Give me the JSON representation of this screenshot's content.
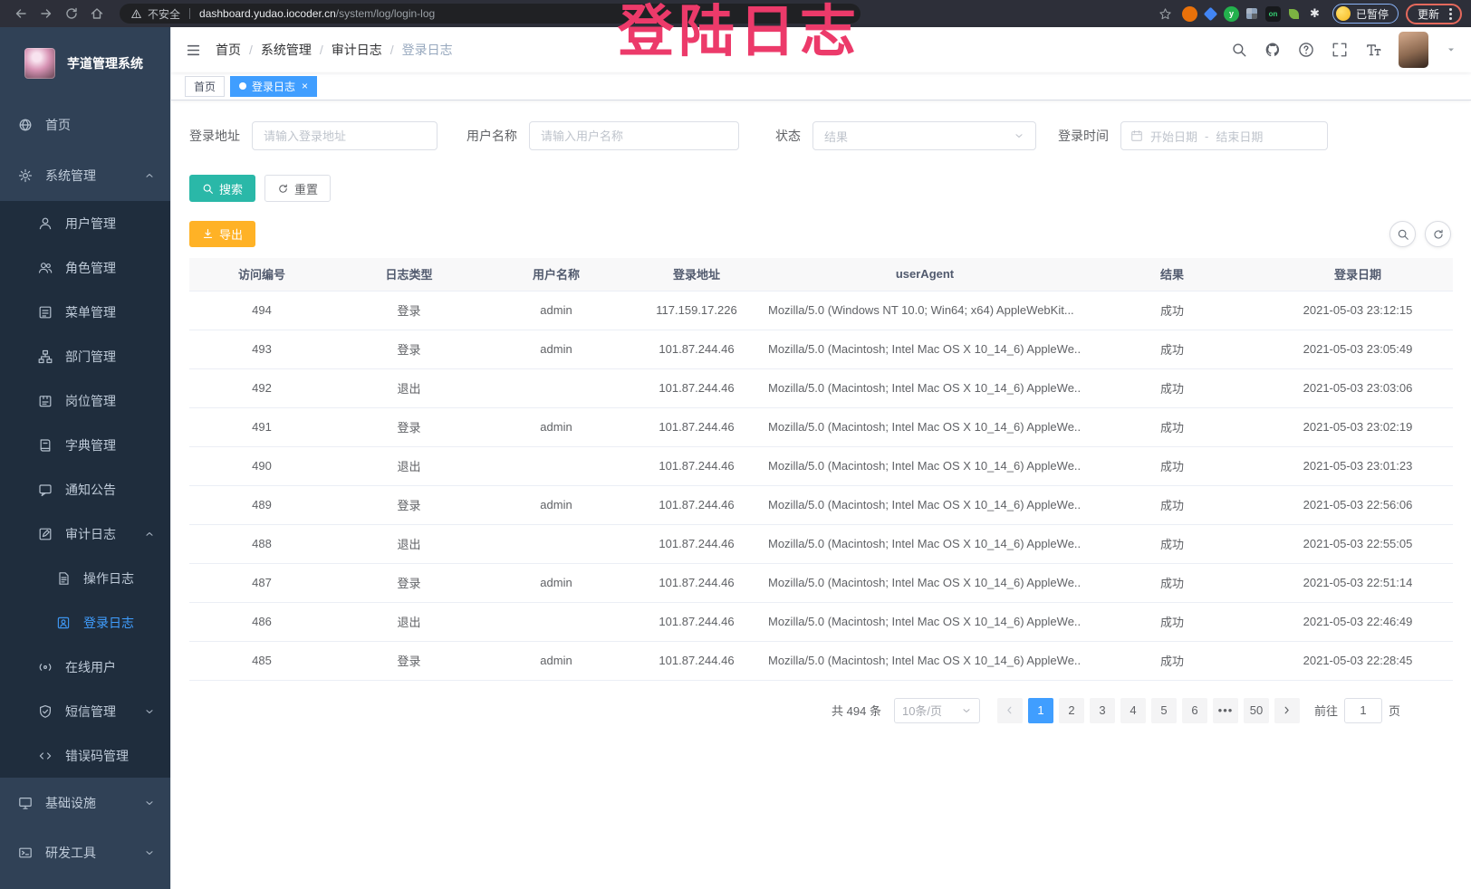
{
  "colors": {
    "accent_blue": "#409eff",
    "search_button_teal": "#2ab8a8",
    "export_button_orange": "#ffb226",
    "annotation_pink": "#ec3a6a",
    "sidebar_bg": "#304156",
    "submenu_bg": "#1f2d3d"
  },
  "browser": {
    "security_label": "不安全",
    "url_domain": "dashboard.yudao.iocoder.cn",
    "url_path": "/system/log/login-log",
    "paused_badge_label": "已暂停",
    "update_button_label": "更新",
    "extensions": [
      {
        "name": "extension-orange-circle",
        "shape": "circle",
        "color": "#e8710a"
      },
      {
        "name": "extension-blue-kite",
        "shape": "kite",
        "color": "#4285f4"
      },
      {
        "name": "extension-green-circle",
        "shape": "circle",
        "color": "#23b14d",
        "label": "y",
        "label_color": "#ffffff"
      },
      {
        "name": "extension-grid",
        "shape": "grid",
        "color": "#8fa3bb"
      },
      {
        "name": "extension-on-badge",
        "shape": "square",
        "color": "#17191c",
        "label": "on",
        "label_color": "#35d073"
      },
      {
        "name": "extension-leaf",
        "shape": "leaf",
        "color": "#7cb342"
      },
      {
        "name": "extension-puzzle",
        "shape": "puzzle",
        "color": "#e8eaed"
      }
    ]
  },
  "overlay_annotation": {
    "text": "登陆日志"
  },
  "sidebar": {
    "logo_title": "芋道管理系统",
    "menu_top": [
      {
        "label": "首页",
        "icon": "dashboard-icon",
        "level": 1
      },
      {
        "label": "系统管理",
        "icon": "gear-icon",
        "level": 1,
        "arrow": "up"
      }
    ],
    "menu_sub": [
      {
        "label": "用户管理",
        "icon": "user-icon",
        "level": 2
      },
      {
        "label": "角色管理",
        "icon": "users-icon",
        "level": 2
      },
      {
        "label": "菜单管理",
        "icon": "menu-tree-icon",
        "level": 2
      },
      {
        "label": "部门管理",
        "icon": "org-tree-icon",
        "level": 2
      },
      {
        "label": "岗位管理",
        "icon": "badge-icon",
        "level": 2
      },
      {
        "label": "字典管理",
        "icon": "dictionary-icon",
        "level": 2
      },
      {
        "label": "通知公告",
        "icon": "announcement-icon",
        "level": 2
      },
      {
        "label": "审计日志",
        "icon": "audit-log-icon",
        "level": 2,
        "arrow": "up"
      },
      {
        "label": "操作日志",
        "icon": "operation-log-icon",
        "level": 3
      },
      {
        "label": "登录日志",
        "icon": "login-log-icon",
        "level": 3,
        "active": true
      },
      {
        "label": "在线用户",
        "icon": "online-users-icon",
        "level": 2
      },
      {
        "label": "短信管理",
        "icon": "sms-icon",
        "level": 2,
        "arrow": "down"
      },
      {
        "label": "错误码管理",
        "icon": "error-code-icon",
        "level": 2
      }
    ],
    "menu_tail": [
      {
        "label": "基础设施",
        "icon": "infrastructure-icon",
        "level": 1,
        "arrow": "down"
      },
      {
        "label": "研发工具",
        "icon": "dev-tools-icon",
        "level": 1,
        "arrow": "down"
      }
    ]
  },
  "navbar": {
    "breadcrumbs": [
      "首页",
      "系统管理",
      "审计日志",
      "登录日志"
    ],
    "right_icons": [
      "search-icon",
      "github-icon",
      "help-icon",
      "fullscreen-icon",
      "font-size-icon"
    ]
  },
  "tags": [
    {
      "label": "首页",
      "active": false,
      "closable": false
    },
    {
      "label": "登录日志",
      "active": true,
      "closable": true
    }
  ],
  "filters": {
    "login_address": {
      "label": "登录地址",
      "placeholder": "请输入登录地址"
    },
    "username": {
      "label": "用户名称",
      "placeholder": "请输入用户名称"
    },
    "status": {
      "label": "状态",
      "placeholder": "结果"
    },
    "login_time": {
      "label": "登录时间",
      "start_placeholder": "开始日期",
      "separator": "-",
      "end_placeholder": "结束日期"
    },
    "search_label": "搜索",
    "reset_label": "重置"
  },
  "toolbar": {
    "export_label": "导出"
  },
  "table": {
    "headers": [
      "访问编号",
      "日志类型",
      "用户名称",
      "登录地址",
      "userAgent",
      "结果",
      "登录日期"
    ],
    "rows": [
      [
        "494",
        "登录",
        "admin",
        "117.159.17.226",
        "Mozilla/5.0 (Windows NT 10.0; Win64; x64) AppleWebKit...",
        "成功",
        "2021-05-03 23:12:15"
      ],
      [
        "493",
        "登录",
        "admin",
        "101.87.244.46",
        "Mozilla/5.0 (Macintosh; Intel Mac OS X 10_14_6) AppleWe...",
        "成功",
        "2021-05-03 23:05:49"
      ],
      [
        "492",
        "退出",
        "",
        "101.87.244.46",
        "Mozilla/5.0 (Macintosh; Intel Mac OS X 10_14_6) AppleWe...",
        "成功",
        "2021-05-03 23:03:06"
      ],
      [
        "491",
        "登录",
        "admin",
        "101.87.244.46",
        "Mozilla/5.0 (Macintosh; Intel Mac OS X 10_14_6) AppleWe...",
        "成功",
        "2021-05-03 23:02:19"
      ],
      [
        "490",
        "退出",
        "",
        "101.87.244.46",
        "Mozilla/5.0 (Macintosh; Intel Mac OS X 10_14_6) AppleWe...",
        "成功",
        "2021-05-03 23:01:23"
      ],
      [
        "489",
        "登录",
        "admin",
        "101.87.244.46",
        "Mozilla/5.0 (Macintosh; Intel Mac OS X 10_14_6) AppleWe...",
        "成功",
        "2021-05-03 22:56:06"
      ],
      [
        "488",
        "退出",
        "",
        "101.87.244.46",
        "Mozilla/5.0 (Macintosh; Intel Mac OS X 10_14_6) AppleWe...",
        "成功",
        "2021-05-03 22:55:05"
      ],
      [
        "487",
        "登录",
        "admin",
        "101.87.244.46",
        "Mozilla/5.0 (Macintosh; Intel Mac OS X 10_14_6) AppleWe...",
        "成功",
        "2021-05-03 22:51:14"
      ],
      [
        "486",
        "退出",
        "",
        "101.87.244.46",
        "Mozilla/5.0 (Macintosh; Intel Mac OS X 10_14_6) AppleWe...",
        "成功",
        "2021-05-03 22:46:49"
      ],
      [
        "485",
        "登录",
        "admin",
        "101.87.244.46",
        "Mozilla/5.0 (Macintosh; Intel Mac OS X 10_14_6) AppleWe...",
        "成功",
        "2021-05-03 22:28:45"
      ]
    ]
  },
  "pagination": {
    "total_text": "共 494 条",
    "page_size_label": "10条/页",
    "pages": [
      "1",
      "2",
      "3",
      "4",
      "5",
      "6",
      "•••",
      "50"
    ],
    "active_page": "1",
    "goto_label": "前往",
    "goto_value": "1",
    "page_unit_label": "页"
  }
}
